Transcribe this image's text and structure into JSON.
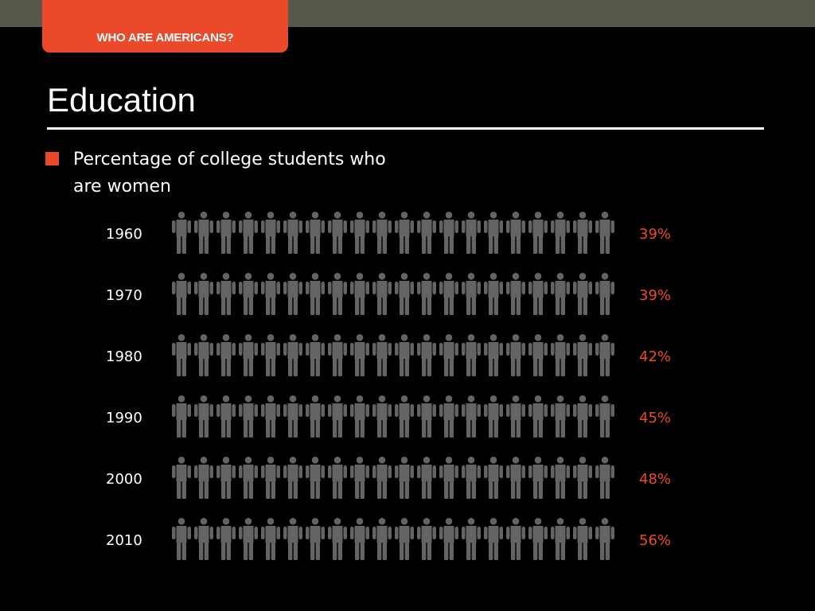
{
  "header": {
    "tab_label": "WHO ARE AMERICANS?"
  },
  "slide": {
    "title": "Education"
  },
  "colors": {
    "accent": "#ea4a2a",
    "neutral_figure": "#646464",
    "background": "#000000",
    "top_band": "#58574b"
  },
  "chart_data": {
    "type": "pictograph",
    "title": "Percentage of college students who are women",
    "icon": "person-icon",
    "icons_per_row": 20,
    "categories": [
      "1960",
      "1970",
      "1980",
      "1990",
      "2000",
      "2010"
    ],
    "values": [
      39,
      39,
      42,
      45,
      48,
      56
    ],
    "value_labels": [
      "39%",
      "39%",
      "42%",
      "45%",
      "48%",
      "56%"
    ],
    "highlight_color": "#ea4a2a",
    "base_color": "#646464"
  }
}
